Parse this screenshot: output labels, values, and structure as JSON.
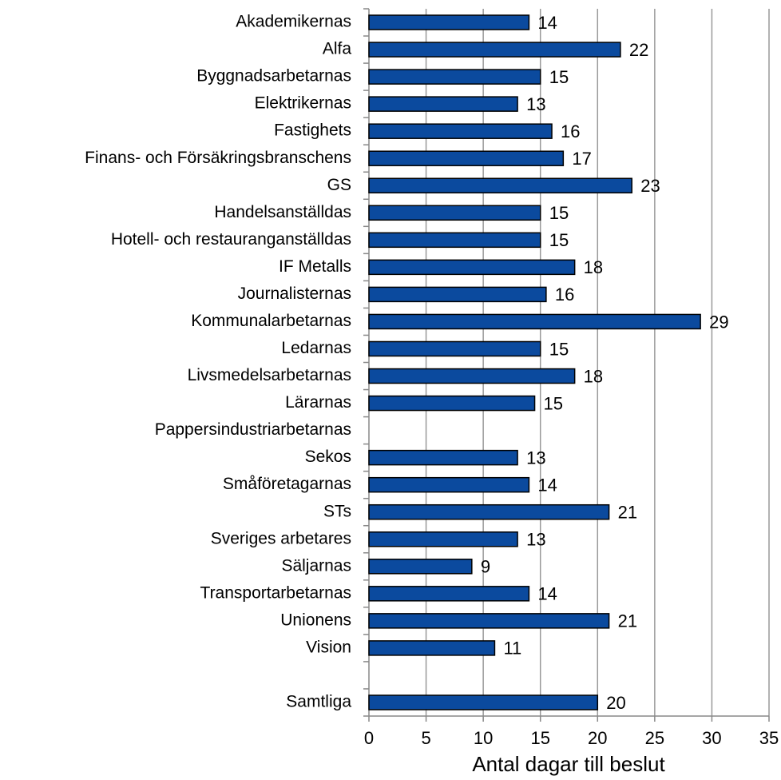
{
  "chart_data": {
    "type": "bar",
    "orientation": "horizontal",
    "x_label": "Antal dagar till beslut",
    "categories": [
      "Akademikernas",
      "Alfa",
      "Byggnadsarbetarnas",
      "Elektrikernas",
      "Fastighets",
      "Finans- och Försäkringsbranschens",
      "GS",
      "Handelsanställdas",
      "Hotell- och restauranganställdas",
      "IF Metalls",
      "Journalisternas",
      "Kommunalarbetarnas",
      "Ledarnas",
      "Livsmedelsarbetarnas",
      "Lärarnas",
      "Pappersindustriarbetarnas",
      "Sekos",
      "Småföretagarnas",
      "STs",
      "Sveriges arbetares",
      "Säljarnas",
      "Transportarbetarnas",
      "Unionens",
      "Vision",
      null,
      "Samtliga"
    ],
    "values": [
      14,
      22,
      15,
      13,
      16,
      17,
      23,
      15,
      15,
      18,
      15.5,
      29,
      15,
      18,
      14.5,
      null,
      13,
      14,
      21,
      13,
      9,
      14,
      21,
      11,
      null,
      20
    ],
    "value_labels": [
      "14",
      "22",
      "15",
      "13",
      "16",
      "17",
      "23",
      "15",
      "15",
      "18",
      "16",
      "29",
      "15",
      "18",
      "15",
      null,
      "13",
      "14",
      "21",
      "13",
      "9",
      "14",
      "21",
      "11",
      null,
      "20"
    ],
    "color": "#0b4a9e",
    "xlim": [
      0,
      35
    ],
    "xticks": [
      0,
      5,
      10,
      15,
      20,
      25,
      30,
      35
    ],
    "grid": true
  }
}
